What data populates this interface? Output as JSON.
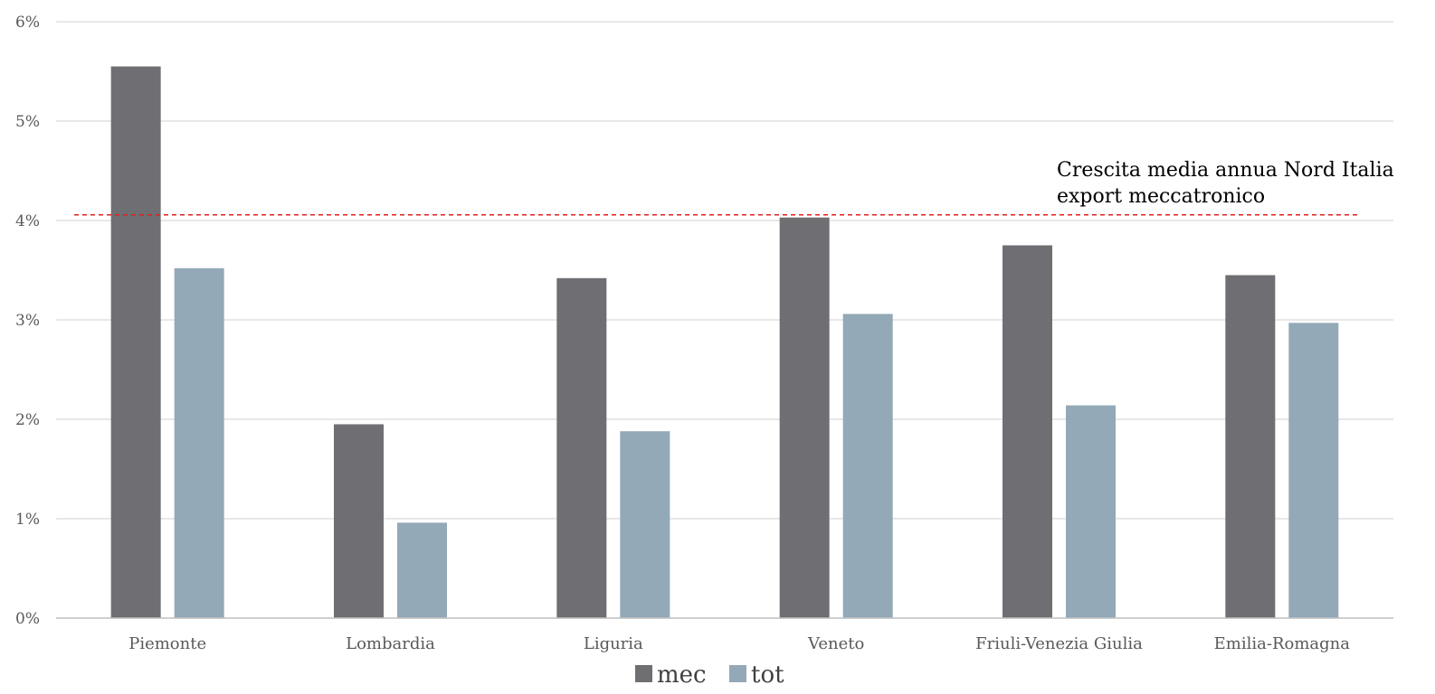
{
  "chart_data": {
    "type": "bar",
    "title": "",
    "xlabel": "",
    "ylabel": "",
    "categories": [
      "Piemonte",
      "Lombardia",
      "Liguria",
      "Veneto",
      "Friuli-Venezia Giulia",
      "Emilia-Romagna"
    ],
    "series": [
      {
        "name": "mec",
        "color": "#6f6e73",
        "values": [
          5.55,
          1.95,
          3.42,
          4.03,
          3.75,
          3.45
        ]
      },
      {
        "name": "tot",
        "color": "#93a9b8",
        "values": [
          3.52,
          0.96,
          1.88,
          3.06,
          2.14,
          2.97
        ]
      }
    ],
    "ylim": [
      0,
      6
    ],
    "yticks": [
      0,
      1,
      2,
      3,
      4,
      5,
      6
    ],
    "ytick_labels": [
      "0%",
      "1%",
      "2%",
      "3%",
      "4%",
      "5%",
      "6%"
    ],
    "grid": true,
    "legend_position": "bottom-center",
    "reference_line": {
      "value": 4.03,
      "color": "#e02020",
      "style": "dashed",
      "label_lines": [
        "Crescita media annua Nord Italia",
        "export meccatronico"
      ]
    }
  }
}
